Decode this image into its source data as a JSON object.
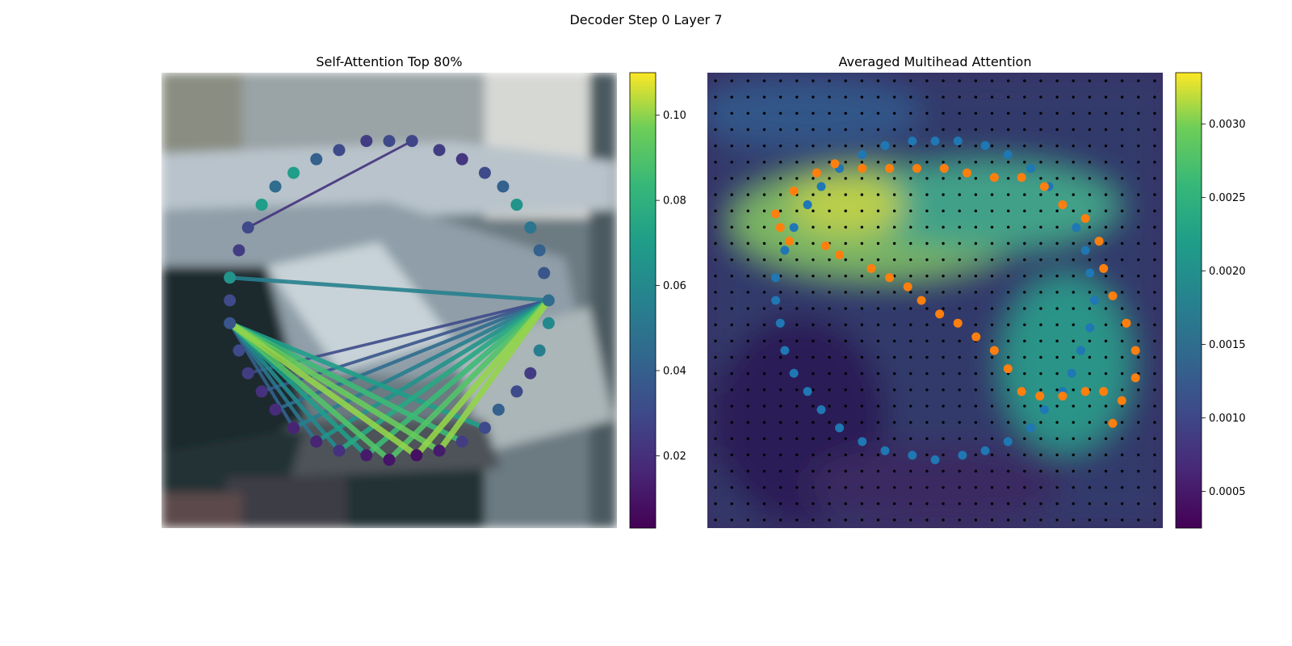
{
  "figure": {
    "suptitle": "Decoder Step 0 Layer 7"
  },
  "chart_data": [
    {
      "type": "scatter",
      "title": "Self-Attention Top 80%",
      "description_of_background": "blurred photo of a vehicle",
      "colormap": "viridis",
      "colorbar": {
        "min": 0.003,
        "max": 0.11,
        "ticks": [
          0.02,
          0.04,
          0.06,
          0.08,
          0.1
        ],
        "tick_labels": [
          "0.02",
          "0.04",
          "0.06",
          "0.08",
          "0.10"
        ]
      },
      "points": [
        {
          "x": 0.5,
          "y": 0.15,
          "v": 0.03
        },
        {
          "x": 0.55,
          "y": 0.15,
          "v": 0.028
        },
        {
          "x": 0.61,
          "y": 0.17,
          "v": 0.025
        },
        {
          "x": 0.66,
          "y": 0.19,
          "v": 0.022
        },
        {
          "x": 0.71,
          "y": 0.22,
          "v": 0.03
        },
        {
          "x": 0.75,
          "y": 0.25,
          "v": 0.04
        },
        {
          "x": 0.78,
          "y": 0.29,
          "v": 0.065
        },
        {
          "x": 0.81,
          "y": 0.34,
          "v": 0.05
        },
        {
          "x": 0.83,
          "y": 0.39,
          "v": 0.04
        },
        {
          "x": 0.84,
          "y": 0.44,
          "v": 0.035
        },
        {
          "x": 0.85,
          "y": 0.5,
          "v": 0.045
        },
        {
          "x": 0.85,
          "y": 0.55,
          "v": 0.06
        },
        {
          "x": 0.83,
          "y": 0.61,
          "v": 0.055
        },
        {
          "x": 0.81,
          "y": 0.66,
          "v": 0.025
        },
        {
          "x": 0.78,
          "y": 0.7,
          "v": 0.03
        },
        {
          "x": 0.74,
          "y": 0.74,
          "v": 0.04
        },
        {
          "x": 0.71,
          "y": 0.78,
          "v": 0.03
        },
        {
          "x": 0.66,
          "y": 0.81,
          "v": 0.025
        },
        {
          "x": 0.61,
          "y": 0.83,
          "v": 0.012
        },
        {
          "x": 0.56,
          "y": 0.84,
          "v": 0.008
        },
        {
          "x": 0.5,
          "y": 0.85,
          "v": 0.01
        },
        {
          "x": 0.45,
          "y": 0.84,
          "v": 0.012
        },
        {
          "x": 0.39,
          "y": 0.83,
          "v": 0.02
        },
        {
          "x": 0.34,
          "y": 0.81,
          "v": 0.015
        },
        {
          "x": 0.29,
          "y": 0.78,
          "v": 0.015
        },
        {
          "x": 0.25,
          "y": 0.74,
          "v": 0.018
        },
        {
          "x": 0.22,
          "y": 0.7,
          "v": 0.02
        },
        {
          "x": 0.19,
          "y": 0.66,
          "v": 0.025
        },
        {
          "x": 0.17,
          "y": 0.61,
          "v": 0.03
        },
        {
          "x": 0.15,
          "y": 0.55,
          "v": 0.035
        },
        {
          "x": 0.15,
          "y": 0.5,
          "v": 0.03
        },
        {
          "x": 0.15,
          "y": 0.45,
          "v": 0.065
        },
        {
          "x": 0.17,
          "y": 0.39,
          "v": 0.025
        },
        {
          "x": 0.19,
          "y": 0.34,
          "v": 0.03
        },
        {
          "x": 0.22,
          "y": 0.29,
          "v": 0.07
        },
        {
          "x": 0.25,
          "y": 0.25,
          "v": 0.045
        },
        {
          "x": 0.29,
          "y": 0.22,
          "v": 0.07
        },
        {
          "x": 0.34,
          "y": 0.19,
          "v": 0.04
        },
        {
          "x": 0.39,
          "y": 0.17,
          "v": 0.03
        },
        {
          "x": 0.45,
          "y": 0.15,
          "v": 0.025
        }
      ],
      "links": [
        {
          "from": 29,
          "to": 22,
          "v": 0.06
        },
        {
          "from": 29,
          "to": 21,
          "v": 0.07
        },
        {
          "from": 29,
          "to": 20,
          "v": 0.09
        },
        {
          "from": 29,
          "to": 19,
          "v": 0.1
        },
        {
          "from": 29,
          "to": 18,
          "v": 0.095
        },
        {
          "from": 29,
          "to": 17,
          "v": 0.085
        },
        {
          "from": 29,
          "to": 16,
          "v": 0.07
        },
        {
          "from": 29,
          "to": 23,
          "v": 0.05
        },
        {
          "from": 29,
          "to": 24,
          "v": 0.04
        },
        {
          "from": 10,
          "to": 19,
          "v": 0.1
        },
        {
          "from": 10,
          "to": 18,
          "v": 0.1
        },
        {
          "from": 10,
          "to": 20,
          "v": 0.09
        },
        {
          "from": 10,
          "to": 21,
          "v": 0.085
        },
        {
          "from": 10,
          "to": 22,
          "v": 0.075
        },
        {
          "from": 10,
          "to": 23,
          "v": 0.065
        },
        {
          "from": 10,
          "to": 24,
          "v": 0.055
        },
        {
          "from": 10,
          "to": 25,
          "v": 0.045
        },
        {
          "from": 10,
          "to": 26,
          "v": 0.035
        },
        {
          "from": 10,
          "to": 27,
          "v": 0.03
        },
        {
          "from": 31,
          "to": 10,
          "v": 0.055
        },
        {
          "from": 33,
          "to": 1,
          "v": 0.02
        }
      ]
    },
    {
      "type": "heatmap",
      "title": "Averaged Multihead Attention",
      "description_of_background": "blurred photo of a vehicle with attention overlay",
      "colormap": "viridis",
      "colorbar": {
        "min": 0.00025,
        "max": 0.00335,
        "ticks": [
          0.0005,
          0.001,
          0.0015,
          0.002,
          0.0025,
          0.003
        ],
        "tick_labels": [
          "0.0005",
          "0.0010",
          "0.0015",
          "0.0020",
          "0.0025",
          "0.0030"
        ]
      },
      "grid": {
        "cols": 28,
        "rows": 28
      },
      "heat_blobs": [
        {
          "cx": 0.38,
          "cy": 0.33,
          "rx": 0.3,
          "ry": 0.11,
          "v": 0.003
        },
        {
          "cx": 0.62,
          "cy": 0.3,
          "rx": 0.3,
          "ry": 0.1,
          "v": 0.0025
        },
        {
          "cx": 0.75,
          "cy": 0.62,
          "rx": 0.14,
          "ry": 0.18,
          "v": 0.0022
        },
        {
          "cx": 0.2,
          "cy": 0.1,
          "rx": 0.2,
          "ry": 0.1,
          "v": 0.0012
        }
      ],
      "series": [
        {
          "name": "",
          "color": "#1f77b4",
          "points": [
            [
              0.5,
              0.15
            ],
            [
              0.55,
              0.15
            ],
            [
              0.61,
              0.16
            ],
            [
              0.66,
              0.18
            ],
            [
              0.71,
              0.21
            ],
            [
              0.75,
              0.25
            ],
            [
              0.78,
              0.29
            ],
            [
              0.81,
              0.34
            ],
            [
              0.83,
              0.39
            ],
            [
              0.84,
              0.44
            ],
            [
              0.85,
              0.5
            ],
            [
              0.84,
              0.56
            ],
            [
              0.82,
              0.61
            ],
            [
              0.8,
              0.66
            ],
            [
              0.78,
              0.7
            ],
            [
              0.74,
              0.74
            ],
            [
              0.71,
              0.78
            ],
            [
              0.66,
              0.81
            ],
            [
              0.61,
              0.83
            ],
            [
              0.56,
              0.84
            ],
            [
              0.5,
              0.85
            ],
            [
              0.45,
              0.84
            ],
            [
              0.39,
              0.83
            ],
            [
              0.34,
              0.81
            ],
            [
              0.29,
              0.78
            ],
            [
              0.25,
              0.74
            ],
            [
              0.22,
              0.7
            ],
            [
              0.19,
              0.66
            ],
            [
              0.17,
              0.61
            ],
            [
              0.16,
              0.55
            ],
            [
              0.15,
              0.5
            ],
            [
              0.15,
              0.45
            ],
            [
              0.17,
              0.39
            ],
            [
              0.19,
              0.34
            ],
            [
              0.22,
              0.29
            ],
            [
              0.25,
              0.25
            ],
            [
              0.29,
              0.21
            ],
            [
              0.34,
              0.18
            ],
            [
              0.39,
              0.16
            ],
            [
              0.45,
              0.15
            ]
          ]
        },
        {
          "name": "",
          "color": "#ff7f0e",
          "points": [
            [
              0.15,
              0.31
            ],
            [
              0.19,
              0.26
            ],
            [
              0.24,
              0.22
            ],
            [
              0.28,
              0.2
            ],
            [
              0.34,
              0.21
            ],
            [
              0.4,
              0.21
            ],
            [
              0.46,
              0.21
            ],
            [
              0.52,
              0.21
            ],
            [
              0.57,
              0.22
            ],
            [
              0.63,
              0.23
            ],
            [
              0.69,
              0.23
            ],
            [
              0.74,
              0.25
            ],
            [
              0.78,
              0.29
            ],
            [
              0.83,
              0.32
            ],
            [
              0.86,
              0.37
            ],
            [
              0.87,
              0.43
            ],
            [
              0.89,
              0.49
            ],
            [
              0.92,
              0.55
            ],
            [
              0.94,
              0.61
            ],
            [
              0.94,
              0.67
            ],
            [
              0.91,
              0.72
            ],
            [
              0.89,
              0.77
            ],
            [
              0.87,
              0.7
            ],
            [
              0.83,
              0.7
            ],
            [
              0.78,
              0.71
            ],
            [
              0.73,
              0.71
            ],
            [
              0.69,
              0.7
            ],
            [
              0.66,
              0.65
            ],
            [
              0.63,
              0.61
            ],
            [
              0.59,
              0.58
            ],
            [
              0.55,
              0.55
            ],
            [
              0.51,
              0.53
            ],
            [
              0.47,
              0.5
            ],
            [
              0.44,
              0.47
            ],
            [
              0.4,
              0.45
            ],
            [
              0.36,
              0.43
            ],
            [
              0.29,
              0.4
            ],
            [
              0.26,
              0.38
            ],
            [
              0.18,
              0.37
            ],
            [
              0.16,
              0.34
            ]
          ]
        }
      ]
    }
  ]
}
